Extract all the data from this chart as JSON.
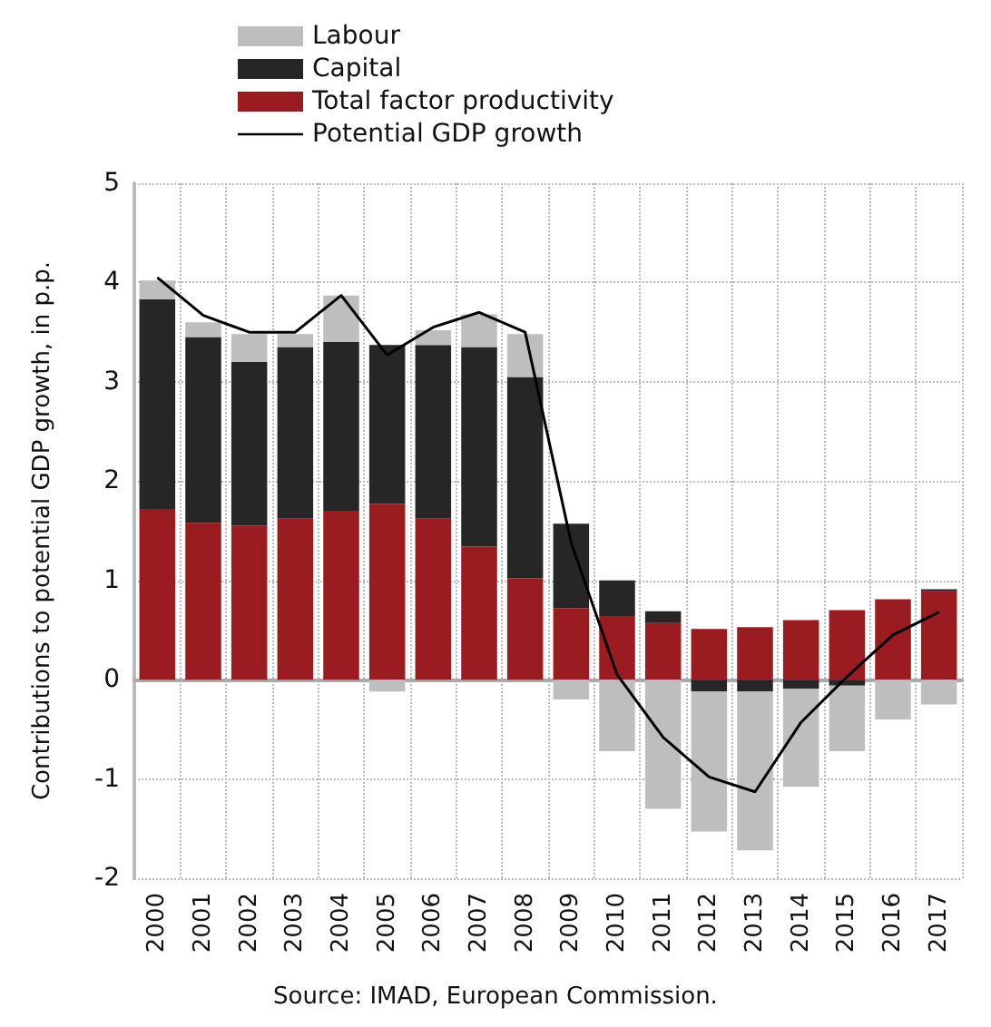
{
  "chart_data": {
    "type": "bar",
    "stacked": true,
    "ylabel": "Contributions to potential GDP growth, in p.p.",
    "categories": [
      "2000",
      "2001",
      "2002",
      "2003",
      "2004",
      "2005",
      "2006",
      "2007",
      "2008",
      "2009",
      "2010",
      "2011",
      "2012",
      "2013",
      "2014",
      "2015",
      "2016",
      "2017"
    ],
    "series": [
      {
        "name": "Total factor productivity",
        "color": "#9b1c20",
        "values": [
          1.72,
          1.58,
          1.55,
          1.62,
          1.7,
          1.77,
          1.62,
          1.34,
          1.02,
          0.72,
          0.64,
          0.57,
          0.51,
          0.53,
          0.6,
          0.7,
          0.81,
          0.89
        ]
      },
      {
        "name": "Capital",
        "color": "#262626",
        "values": [
          2.11,
          1.87,
          1.65,
          1.73,
          1.7,
          1.6,
          1.75,
          2.01,
          2.03,
          0.85,
          0.36,
          0.12,
          -0.12,
          -0.12,
          -0.09,
          -0.06,
          0,
          0.02
        ]
      },
      {
        "name": "Labour",
        "color": "#bebebe",
        "values": [
          0.19,
          0.15,
          0.28,
          0.13,
          0.47,
          -0.12,
          0.15,
          0.33,
          0.43,
          -0.2,
          -0.72,
          -1.3,
          -1.41,
          -1.6,
          -0.99,
          -0.66,
          -0.4,
          -0.25
        ]
      },
      {
        "name": "Potential GDP growth",
        "type": "line",
        "color": "#000000",
        "values": [
          4.05,
          3.67,
          3.5,
          3.5,
          3.87,
          3.27,
          3.55,
          3.7,
          3.5,
          1.38,
          0.05,
          -0.58,
          -0.98,
          -1.13,
          -0.43,
          0.03,
          0.45,
          0.68
        ]
      }
    ],
    "ylim": [
      -2,
      5
    ],
    "yticks": [
      -2,
      -1,
      0,
      1,
      2,
      3,
      4,
      5
    ],
    "grid": true,
    "legend": "top left",
    "marker": "none",
    "line_style": "solid",
    "annotations": [
      "Source: IMAD, European Commission."
    ]
  }
}
